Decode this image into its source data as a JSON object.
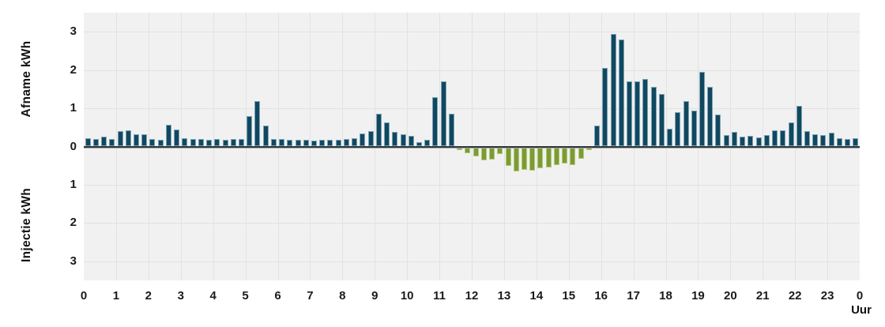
{
  "colors": {
    "afname_bar": "#11485f",
    "afname_bar_border": "#7ba4b6",
    "injectie_bar": "#7b9c33",
    "injectie_bar_border": "#b4c877",
    "plot_background": "#f1f1f1",
    "grid_line": "#e2e2e2",
    "zero_axis_line": "#2e373b",
    "tick_text": "#1b1b1b"
  },
  "axes": {
    "ylabel_top": "Afname kWh",
    "ylabel_bottom": "Injectie kWh",
    "x_unit_label": "Uur"
  },
  "chart_data": {
    "type": "bar",
    "title": "",
    "xlabel": "Uur",
    "ylabel": "Afname kWh (positive) / Injectie kWh (negative)",
    "ylim": [
      -3.5,
      3.5
    ],
    "grid": true,
    "legend": false,
    "x_interval_minutes": 15,
    "x_hours_span": 24,
    "x_tick_labels": [
      "0",
      "1",
      "2",
      "3",
      "4",
      "5",
      "6",
      "7",
      "8",
      "9",
      "10",
      "11",
      "12",
      "13",
      "14",
      "15",
      "16",
      "17",
      "18",
      "19",
      "20",
      "21",
      "22",
      "23",
      "0"
    ],
    "y_ticks_top": [
      3,
      2,
      1,
      0
    ],
    "y_ticks_bottom": [
      1,
      2,
      3
    ],
    "series": [
      {
        "name": "Afname",
        "unit": "kWh",
        "sign": "positive",
        "color": "#11485f"
      },
      {
        "name": "Injectie",
        "unit": "kWh",
        "sign": "negative",
        "color": "#7b9c33"
      }
    ],
    "values_kwh_per_quarter_hour": [
      0.22,
      0.2,
      0.26,
      0.2,
      0.4,
      0.42,
      0.32,
      0.32,
      0.2,
      0.18,
      0.57,
      0.44,
      0.22,
      0.2,
      0.19,
      0.18,
      0.2,
      0.17,
      0.19,
      0.19,
      0.79,
      1.18,
      0.55,
      0.19,
      0.2,
      0.17,
      0.18,
      0.18,
      0.15,
      0.17,
      0.18,
      0.18,
      0.2,
      0.22,
      0.35,
      0.4,
      0.86,
      0.64,
      0.38,
      0.32,
      0.28,
      0.12,
      0.18,
      1.3,
      1.7,
      0.85,
      -0.09,
      -0.18,
      -0.26,
      -0.37,
      -0.35,
      -0.2,
      -0.51,
      -0.65,
      -0.6,
      -0.62,
      -0.56,
      -0.55,
      -0.49,
      -0.45,
      -0.49,
      -0.33,
      -0.1,
      0.55,
      2.06,
      2.95,
      2.8,
      1.7,
      1.7,
      1.77,
      1.55,
      1.38,
      0.47,
      0.9,
      1.19,
      0.93,
      1.95,
      1.56,
      0.83,
      0.3,
      0.38,
      0.25,
      0.28,
      0.24,
      0.3,
      0.42,
      0.42,
      0.64,
      1.06,
      0.4,
      0.33,
      0.3,
      0.37,
      0.21,
      0.2,
      0.21
    ]
  }
}
